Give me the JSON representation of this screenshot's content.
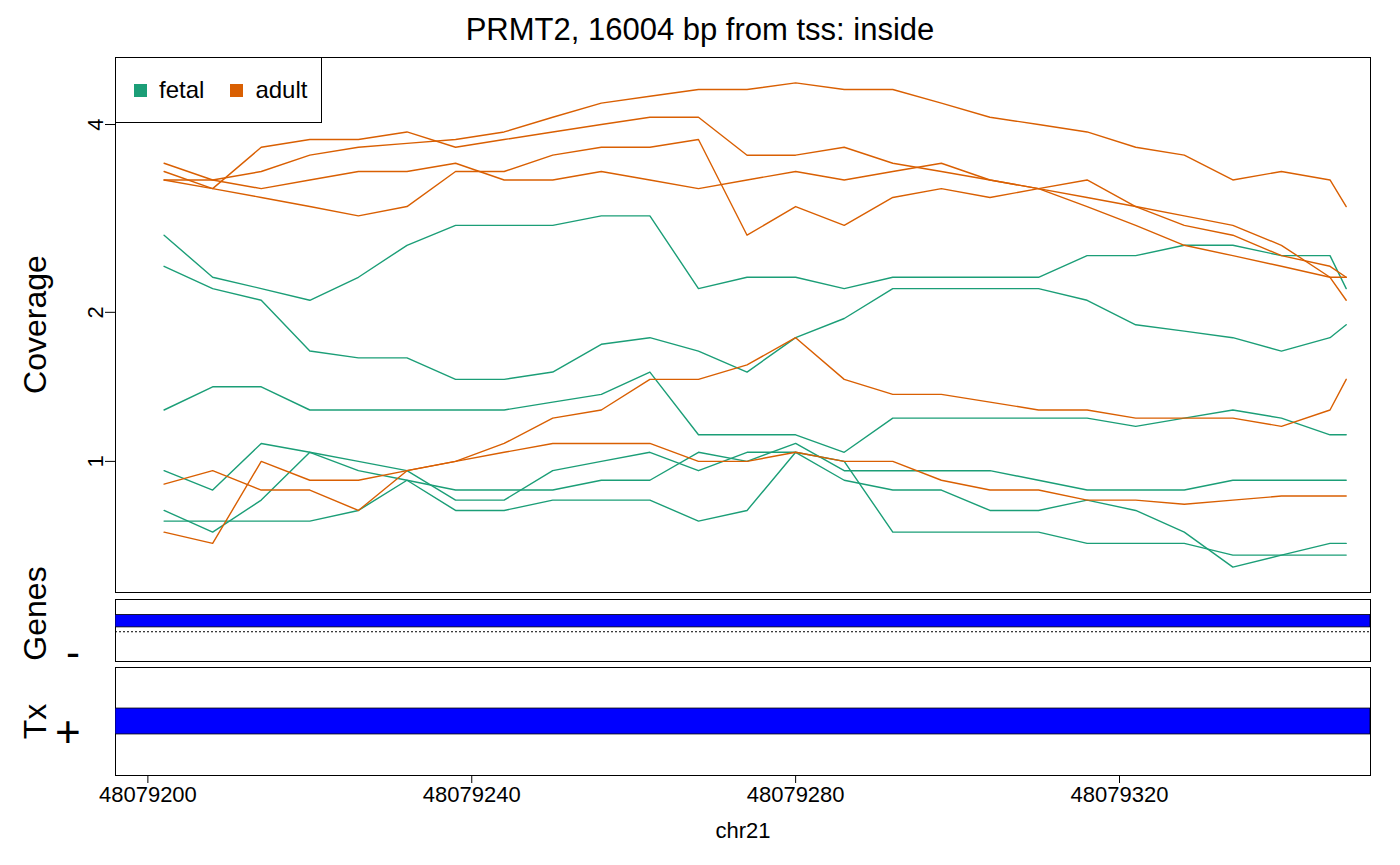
{
  "chart_data": {
    "type": "line",
    "title": "PRMT2, 16004 bp from tss: inside",
    "xlabel": "chr21",
    "ylabel": "Coverage",
    "log": "y",
    "legend": "top-left",
    "xlim": [
      48079196,
      48079351
    ],
    "xticks": [
      48079200,
      48079240,
      48079280,
      48079320
    ],
    "ylim": [
      0.4,
      5.0
    ],
    "yticks": [
      1,
      2,
      4
    ],
    "x": [
      48079202,
      48079208,
      48079214,
      48079220,
      48079226,
      48079232,
      48079238,
      48079244,
      48079250,
      48079256,
      48079262,
      48079268,
      48079274,
      48079280,
      48079286,
      48079292,
      48079298,
      48079304,
      48079310,
      48079316,
      48079322,
      48079328,
      48079334,
      48079340,
      48079346,
      48079348
    ],
    "series": [
      {
        "name": "fetal",
        "color": "#1B9E77",
        "values": [
          2.7,
          2.3,
          2.2,
          2.1,
          2.3,
          2.6,
          2.8,
          2.8,
          2.8,
          2.9,
          2.9,
          2.2,
          2.3,
          2.3,
          2.2,
          2.3,
          2.3,
          2.3,
          2.3,
          2.5,
          2.5,
          2.6,
          2.6,
          2.5,
          2.5,
          2.2
        ]
      },
      {
        "name": "fetal",
        "color": "#1B9E77",
        "values": [
          2.4,
          2.2,
          2.1,
          1.7,
          1.65,
          1.65,
          1.5,
          1.5,
          1.55,
          1.75,
          1.8,
          1.7,
          1.55,
          1.8,
          1.95,
          2.2,
          2.2,
          2.2,
          2.2,
          2.1,
          1.9,
          1.85,
          1.8,
          1.7,
          1.8,
          1.9
        ]
      },
      {
        "name": "fetal",
        "color": "#1B9E77",
        "values": [
          1.3,
          1.45,
          1.45,
          1.3,
          1.3,
          1.3,
          1.3,
          1.3,
          1.35,
          1.4,
          1.55,
          1.15,
          1.15,
          1.15,
          1.05,
          1.25,
          1.25,
          1.25,
          1.25,
          1.25,
          1.2,
          1.25,
          1.3,
          1.25,
          1.15,
          1.15
        ]
      },
      {
        "name": "fetal",
        "color": "#1B9E77",
        "values": [
          0.95,
          0.85,
          1.1,
          1.05,
          0.95,
          0.9,
          0.85,
          0.85,
          0.85,
          0.9,
          0.9,
          1.05,
          1.0,
          1.1,
          0.95,
          0.95,
          0.95,
          0.95,
          0.9,
          0.85,
          0.85,
          0.85,
          0.9,
          0.9,
          0.9,
          0.9
        ]
      },
      {
        "name": "fetal",
        "color": "#1B9E77",
        "values": [
          0.75,
          0.65,
          0.8,
          1.05,
          1.0,
          0.95,
          0.8,
          0.8,
          0.95,
          1.0,
          1.05,
          0.95,
          1.05,
          1.05,
          0.9,
          0.85,
          0.85,
          0.75,
          0.75,
          0.8,
          0.75,
          0.65,
          0.5,
          0.55,
          0.6,
          0.6
        ]
      },
      {
        "name": "fetal",
        "color": "#1B9E77",
        "values": [
          0.7,
          0.7,
          0.7,
          0.7,
          0.75,
          0.9,
          0.75,
          0.75,
          0.8,
          0.8,
          0.8,
          0.7,
          0.75,
          1.05,
          1.0,
          0.65,
          0.65,
          0.65,
          0.65,
          0.6,
          0.6,
          0.6,
          0.55,
          0.55,
          0.55,
          0.55
        ]
      },
      {
        "name": "adult",
        "color": "#D95F02",
        "values": [
          3.5,
          3.3,
          3.4,
          3.6,
          3.7,
          3.75,
          3.8,
          3.9,
          4.1,
          4.3,
          4.4,
          4.5,
          4.5,
          4.6,
          4.5,
          4.5,
          4.3,
          4.1,
          4.0,
          3.9,
          3.7,
          3.6,
          3.3,
          3.4,
          3.3,
          3.0
        ]
      },
      {
        "name": "adult",
        "color": "#D95F02",
        "values": [
          3.4,
          3.2,
          3.7,
          3.8,
          3.8,
          3.9,
          3.7,
          3.8,
          3.9,
          4.0,
          4.1,
          4.1,
          3.6,
          3.6,
          3.7,
          3.5,
          3.4,
          3.3,
          3.2,
          3.1,
          3.0,
          2.9,
          2.8,
          2.6,
          2.3,
          2.1
        ]
      },
      {
        "name": "adult",
        "color": "#D95F02",
        "values": [
          3.3,
          3.2,
          3.1,
          3.0,
          2.9,
          3.0,
          3.4,
          3.4,
          3.6,
          3.7,
          3.7,
          3.8,
          2.7,
          3.0,
          2.8,
          3.1,
          3.2,
          3.1,
          3.2,
          3.0,
          2.8,
          2.6,
          2.5,
          2.4,
          2.3,
          2.3
        ]
      },
      {
        "name": "adult",
        "color": "#D95F02",
        "values": [
          3.3,
          3.3,
          3.2,
          3.3,
          3.4,
          3.4,
          3.5,
          3.3,
          3.3,
          3.4,
          3.3,
          3.2,
          3.3,
          3.4,
          3.3,
          3.4,
          3.5,
          3.3,
          3.2,
          3.3,
          3.0,
          2.8,
          2.7,
          2.5,
          2.4,
          2.3
        ]
      },
      {
        "name": "adult",
        "color": "#D95F02",
        "values": [
          0.88,
          0.95,
          0.85,
          0.85,
          0.75,
          0.95,
          1.0,
          1.1,
          1.25,
          1.3,
          1.5,
          1.5,
          1.6,
          1.8,
          1.5,
          1.4,
          1.4,
          1.35,
          1.3,
          1.3,
          1.25,
          1.25,
          1.25,
          1.2,
          1.3,
          1.5
        ]
      },
      {
        "name": "adult",
        "color": "#D95F02",
        "values": [
          0.65,
          0.6,
          1.0,
          0.9,
          0.9,
          0.95,
          1.0,
          1.05,
          1.1,
          1.1,
          1.1,
          1.0,
          1.0,
          1.05,
          1.0,
          1.0,
          0.9,
          0.85,
          0.85,
          0.8,
          0.8,
          0.78,
          0.8,
          0.82,
          0.82,
          0.82
        ]
      }
    ],
    "tracks": [
      {
        "label": "Genes",
        "strand": "-",
        "start": 48079196,
        "end": 48079351
      },
      {
        "label": "Tx",
        "strand": "+",
        "start": 48079196,
        "end": 48079351
      }
    ]
  }
}
